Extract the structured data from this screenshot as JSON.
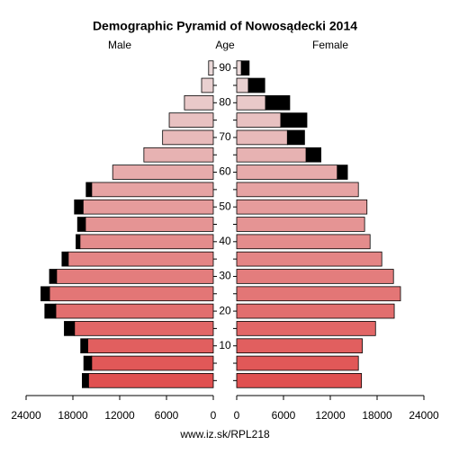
{
  "chart_data": {
    "type": "pyramid",
    "title": "Demographic Pyramid of Nowosądecki 2014",
    "y_label": "Age",
    "categories": [
      null,
      null,
      "10",
      null,
      "20",
      null,
      "30",
      null,
      "40",
      null,
      "50",
      null,
      "60",
      null,
      "70",
      null,
      "80",
      null,
      "90"
    ],
    "series": [
      {
        "name": "Male",
        "values": [
          16800,
          16600,
          17000,
          19100,
          21600,
          22100,
          21000,
          19400,
          17600,
          17400,
          17800,
          16300,
          12900,
          8900,
          6500,
          5650,
          3700,
          1500,
          600
        ]
      },
      {
        "name": "Female",
        "values": [
          16000,
          15600,
          16100,
          17800,
          20200,
          21000,
          20100,
          18600,
          17100,
          16400,
          16700,
          15600,
          14200,
          10800,
          8700,
          9000,
          6800,
          3600,
          1600
        ]
      }
    ],
    "excess_color": "#000000",
    "color_bottom": "#e05050",
    "color_top": "#ead8d8",
    "xlim": [
      0,
      24000
    ],
    "xticks": [
      0,
      6000,
      12000,
      18000,
      24000
    ],
    "footer": "www.iz.sk/RPL218"
  }
}
